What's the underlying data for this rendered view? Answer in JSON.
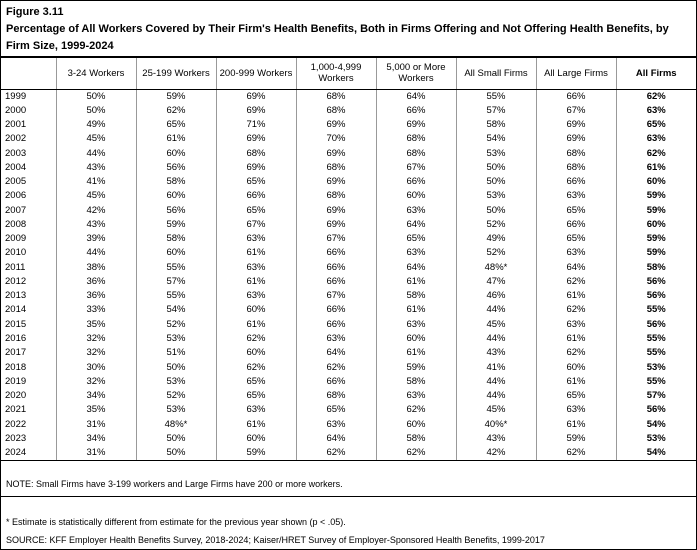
{
  "header": {
    "figure_number": "Figure 3.11",
    "title": "Percentage of All Workers Covered by Their Firm's Health Benefits, Both in Firms Offering and Not Offering Health Benefits, by Firm Size, 1999-2024"
  },
  "chart_data": {
    "type": "table",
    "title": "Percentage of All Workers Covered by Their Firm's Health Benefits, Both in Firms Offering and Not Offering Health Benefits, by Firm Size, 1999-2024",
    "columns": [
      "",
      "3-24 Workers",
      "25-199 Workers",
      "200-999 Workers",
      "1,000-4,999 Workers",
      "5,000 or More Workers",
      "All Small Firms",
      "All Large Firms",
      "All Firms"
    ],
    "rows": [
      {
        "year": "1999",
        "values": [
          "50%",
          "59%",
          "69%",
          "68%",
          "64%",
          "55%",
          "66%",
          "62%"
        ]
      },
      {
        "year": "2000",
        "values": [
          "50%",
          "62%",
          "69%",
          "68%",
          "66%",
          "57%",
          "67%",
          "63%"
        ]
      },
      {
        "year": "2001",
        "values": [
          "49%",
          "65%",
          "71%",
          "69%",
          "69%",
          "58%",
          "69%",
          "65%"
        ]
      },
      {
        "year": "2002",
        "values": [
          "45%",
          "61%",
          "69%",
          "70%",
          "68%",
          "54%",
          "69%",
          "63%"
        ]
      },
      {
        "year": "2003",
        "values": [
          "44%",
          "60%",
          "68%",
          "69%",
          "68%",
          "53%",
          "68%",
          "62%"
        ]
      },
      {
        "year": "2004",
        "values": [
          "43%",
          "56%",
          "69%",
          "68%",
          "67%",
          "50%",
          "68%",
          "61%"
        ]
      },
      {
        "year": "2005",
        "values": [
          "41%",
          "58%",
          "65%",
          "69%",
          "66%",
          "50%",
          "66%",
          "60%"
        ]
      },
      {
        "year": "2006",
        "values": [
          "45%",
          "60%",
          "66%",
          "68%",
          "60%",
          "53%",
          "63%",
          "59%"
        ]
      },
      {
        "year": "2007",
        "values": [
          "42%",
          "56%",
          "65%",
          "69%",
          "63%",
          "50%",
          "65%",
          "59%"
        ]
      },
      {
        "year": "2008",
        "values": [
          "43%",
          "59%",
          "67%",
          "69%",
          "64%",
          "52%",
          "66%",
          "60%"
        ]
      },
      {
        "year": "2009",
        "values": [
          "39%",
          "58%",
          "63%",
          "67%",
          "65%",
          "49%",
          "65%",
          "59%"
        ]
      },
      {
        "year": "2010",
        "values": [
          "44%",
          "60%",
          "61%",
          "66%",
          "63%",
          "52%",
          "63%",
          "59%"
        ]
      },
      {
        "year": "2011",
        "values": [
          "38%",
          "55%",
          "63%",
          "66%",
          "64%",
          "48%*",
          "64%",
          "58%"
        ]
      },
      {
        "year": "2012",
        "values": [
          "36%",
          "57%",
          "61%",
          "66%",
          "61%",
          "47%",
          "62%",
          "56%"
        ]
      },
      {
        "year": "2013",
        "values": [
          "36%",
          "55%",
          "63%",
          "67%",
          "58%",
          "46%",
          "61%",
          "56%"
        ]
      },
      {
        "year": "2014",
        "values": [
          "33%",
          "54%",
          "60%",
          "66%",
          "61%",
          "44%",
          "62%",
          "55%"
        ]
      },
      {
        "year": "2015",
        "values": [
          "35%",
          "52%",
          "61%",
          "66%",
          "63%",
          "45%",
          "63%",
          "56%"
        ]
      },
      {
        "year": "2016",
        "values": [
          "32%",
          "53%",
          "62%",
          "63%",
          "60%",
          "44%",
          "61%",
          "55%"
        ]
      },
      {
        "year": "2017",
        "values": [
          "32%",
          "51%",
          "60%",
          "64%",
          "61%",
          "43%",
          "62%",
          "55%"
        ]
      },
      {
        "year": "2018",
        "values": [
          "30%",
          "50%",
          "62%",
          "62%",
          "59%",
          "41%",
          "60%",
          "53%"
        ]
      },
      {
        "year": "2019",
        "values": [
          "32%",
          "53%",
          "65%",
          "66%",
          "58%",
          "44%",
          "61%",
          "55%"
        ]
      },
      {
        "year": "2020",
        "values": [
          "34%",
          "52%",
          "65%",
          "68%",
          "63%",
          "44%",
          "65%",
          "57%"
        ]
      },
      {
        "year": "2021",
        "values": [
          "35%",
          "53%",
          "63%",
          "65%",
          "62%",
          "45%",
          "63%",
          "56%"
        ]
      },
      {
        "year": "2022",
        "values": [
          "31%",
          "48%*",
          "61%",
          "63%",
          "60%",
          "40%*",
          "61%",
          "54%"
        ]
      },
      {
        "year": "2023",
        "values": [
          "34%",
          "50%",
          "60%",
          "64%",
          "58%",
          "43%",
          "59%",
          "53%"
        ]
      },
      {
        "year": "2024",
        "values": [
          "31%",
          "50%",
          "59%",
          "62%",
          "62%",
          "42%",
          "62%",
          "54%"
        ]
      }
    ]
  },
  "footer": {
    "note": "NOTE: Small Firms have 3-199 workers and Large Firms have 200 or more workers.",
    "footnote": "* Estimate is statistically different from estimate for the previous year shown (p < .05).",
    "source": "SOURCE: KFF Employer Health Benefits Survey, 2018-2024; Kaiser/HRET Survey of Employer-Sponsored Health Benefits, 1999-2017"
  }
}
